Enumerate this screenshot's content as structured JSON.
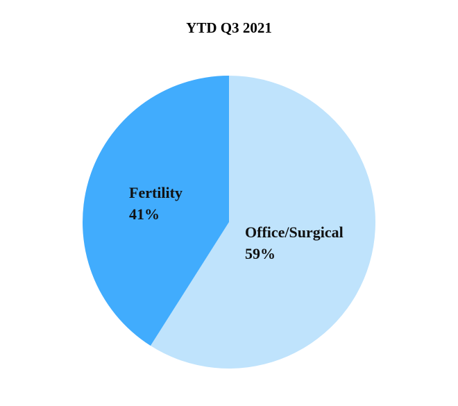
{
  "chart_data": {
    "type": "pie",
    "title": "YTD Q3 2021",
    "slices": [
      {
        "label": "Office/Surgical",
        "value": 59,
        "value_label": "59%",
        "color": "#bfe3fc"
      },
      {
        "label": "Fertility",
        "value": 41,
        "value_label": "41%",
        "color": "#41acfd"
      }
    ],
    "start": "12 o'clock",
    "direction": "clockwise",
    "legend": "none"
  }
}
